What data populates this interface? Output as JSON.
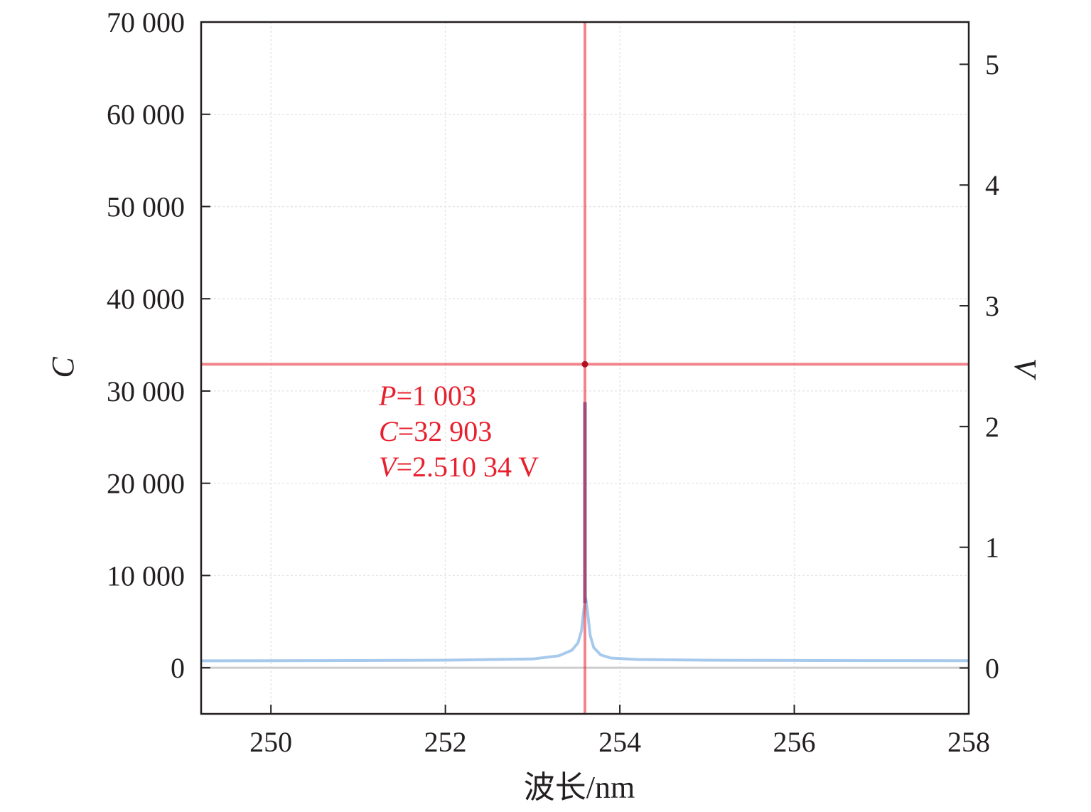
{
  "chart_data": {
    "type": "line",
    "title": "",
    "xlabel": "波长/nm",
    "ylabel": "C",
    "y2label": "V",
    "xlim": [
      249.2,
      258
    ],
    "ylim": [
      -5000,
      70000
    ],
    "y2lim": [
      -0.38,
      5.35
    ],
    "x_ticks": [
      250,
      252,
      254,
      256,
      258
    ],
    "x_tick_labels": [
      "250",
      "252",
      "254",
      "256",
      "258"
    ],
    "y_ticks": [
      0,
      10000,
      20000,
      30000,
      40000,
      50000,
      60000,
      70000
    ],
    "y_tick_labels": [
      "0",
      "10 000",
      "20 000",
      "30 000",
      "40 000",
      "50 000",
      "60 000",
      "70 000"
    ],
    "y2_ticks": [
      0,
      1,
      2,
      3,
      4,
      5
    ],
    "y2_tick_labels": [
      "0",
      "1",
      "2",
      "3",
      "4",
      "5"
    ],
    "grid": true,
    "series": [
      {
        "color": "#9cc3ea",
        "x": [
          249.2,
          250,
          251,
          252,
          253,
          253.3,
          253.45,
          253.52,
          253.56,
          253.59,
          253.61,
          253.63,
          253.66,
          253.7,
          253.78,
          253.9,
          254.2,
          255,
          256,
          257,
          258
        ],
        "y": [
          750,
          760,
          780,
          820,
          950,
          1300,
          1900,
          2700,
          4000,
          6500,
          7500,
          6000,
          3500,
          2200,
          1400,
          1050,
          900,
          820,
          790,
          770,
          760
        ]
      },
      {
        "color": "#5865b8",
        "x": [
          253.6,
          253.6
        ],
        "y": [
          7000,
          28800
        ]
      }
    ],
    "cursor": {
      "color": "#e8202e",
      "x": 253.6,
      "y": 32903,
      "point_color": "#b01020"
    },
    "annotations": {
      "p_label": "P",
      "p_value": "=1 003",
      "c_label": "C",
      "c_value": "=32 903",
      "v_label": "V",
      "v_value": "=2.510 34 V"
    }
  }
}
